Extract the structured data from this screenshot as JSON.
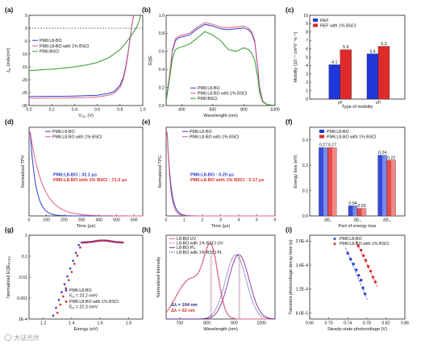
{
  "figure": {
    "watermark": "大话光伏",
    "colors": {
      "blue": "#2b3fd0",
      "red": "#e02a2a",
      "pink": "#e06080",
      "green": "#2e9a2e",
      "purple": "#8a2aa0",
      "navy": "#1c2a8a"
    }
  },
  "chart_data": [
    {
      "panel": "(a)",
      "type": "line",
      "xlabel": "V",
      "xlabel_sub": "OC",
      "xlabel_unit": " (V)",
      "ylabel": "J",
      "ylabel_sub": "sc",
      "ylabel_unit": " (mA/cm²)",
      "xlim": [
        0,
        1.0
      ],
      "ylim": [
        -30,
        5
      ],
      "xticks": [
        "0.0",
        "0.2",
        "0.4",
        "0.6",
        "0.8",
        "1.0"
      ],
      "yticks": [
        "5",
        "0",
        "-5",
        "-10",
        "-15",
        "-20",
        "-25",
        "-30"
      ],
      "legend": "top-left",
      "series": [
        {
          "name": "PM6:L8-BO",
          "color": "#2b3fd0",
          "x": [
            0,
            0.1,
            0.2,
            0.3,
            0.4,
            0.5,
            0.6,
            0.7,
            0.75,
            0.8,
            0.83,
            0.85,
            0.87,
            0.89,
            0.9,
            0.92
          ],
          "y": [
            -26.5,
            -26.5,
            -26.4,
            -26.4,
            -26.3,
            -26.2,
            -26.0,
            -25.3,
            -24.5,
            -22.2,
            -19,
            -15,
            -9.5,
            -3.5,
            0,
            5
          ]
        },
        {
          "name": "PM6:L8-BO with 1% BSCl",
          "color": "#e06080",
          "x": [
            0,
            0.1,
            0.2,
            0.3,
            0.4,
            0.5,
            0.6,
            0.7,
            0.75,
            0.8,
            0.83,
            0.85,
            0.87,
            0.89,
            0.9,
            0.92
          ],
          "y": [
            -27.2,
            -27.2,
            -27.1,
            -27.1,
            -27.0,
            -26.9,
            -26.7,
            -26.0,
            -25.2,
            -23,
            -19.8,
            -15.8,
            -10.2,
            -4,
            0,
            5
          ]
        },
        {
          "name": "PM6:BSCl",
          "color": "#2e9a2e",
          "x": [
            0,
            0.1,
            0.2,
            0.3,
            0.4,
            0.5,
            0.6,
            0.7,
            0.8,
            0.85,
            0.88,
            0.92,
            0.95,
            0.97,
            0.98
          ],
          "y": [
            -16.5,
            -16.2,
            -15.9,
            -15.5,
            -15,
            -14.3,
            -13.3,
            -11.5,
            -8.3,
            -5.8,
            -4,
            -1.5,
            0.8,
            3,
            5
          ]
        }
      ]
    },
    {
      "panel": "(b)",
      "type": "line",
      "xlabel": "Wavelength (nm)",
      "ylabel": "EQE",
      "xlim": [
        300,
        1000
      ],
      "ylim": [
        0,
        1.0
      ],
      "xticks": [
        "400",
        "600",
        "800",
        "1000"
      ],
      "yticks": [
        "0.0",
        "0.2",
        "0.4",
        "0.6",
        "0.8",
        "1.0"
      ],
      "legend": "bottom-center",
      "series": [
        {
          "name": "PM6:L8-BO",
          "color": "#2b3fd0",
          "x": [
            300,
            320,
            340,
            360,
            380,
            400,
            450,
            500,
            550,
            600,
            650,
            700,
            750,
            800,
            830,
            850,
            870,
            890,
            900,
            920,
            950,
            1000
          ],
          "y": [
            0.05,
            0.3,
            0.6,
            0.72,
            0.75,
            0.76,
            0.78,
            0.85,
            0.9,
            0.88,
            0.85,
            0.84,
            0.85,
            0.86,
            0.84,
            0.8,
            0.7,
            0.4,
            0.2,
            0.05,
            0.01,
            0
          ]
        },
        {
          "name": "PM6:L8-BO with 1% BSCl",
          "color": "#e06080",
          "x": [
            300,
            320,
            340,
            360,
            380,
            400,
            450,
            500,
            550,
            600,
            650,
            700,
            750,
            800,
            830,
            850,
            870,
            890,
            900,
            920,
            950,
            1000
          ],
          "y": [
            0.05,
            0.32,
            0.62,
            0.74,
            0.77,
            0.78,
            0.8,
            0.87,
            0.92,
            0.9,
            0.87,
            0.86,
            0.87,
            0.88,
            0.86,
            0.82,
            0.72,
            0.42,
            0.22,
            0.05,
            0.01,
            0
          ]
        },
        {
          "name": "PM6:BSCl",
          "color": "#2e9a2e",
          "x": [
            300,
            320,
            340,
            360,
            380,
            400,
            450,
            500,
            550,
            600,
            650,
            700,
            750,
            800,
            830,
            850,
            870,
            890,
            900,
            920,
            950,
            1000
          ],
          "y": [
            0.05,
            0.28,
            0.52,
            0.62,
            0.64,
            0.65,
            0.68,
            0.75,
            0.82,
            0.78,
            0.72,
            0.62,
            0.6,
            0.64,
            0.62,
            0.58,
            0.5,
            0.3,
            0.15,
            0.04,
            0.01,
            0
          ]
        }
      ]
    },
    {
      "panel": "(c)",
      "type": "bar",
      "xlabel": "Type of mobility",
      "ylabel": "Mobility (10⁻⁴ cm²V⁻¹s⁻¹)",
      "ylim": [
        0,
        10
      ],
      "yticks": [
        "10",
        "9",
        "8",
        "7",
        "6",
        "5",
        "4",
        "3",
        "2",
        "1",
        "0"
      ],
      "categories": [
        "μe",
        "μh"
      ],
      "legend": "top-left",
      "series": [
        {
          "name": "REF",
          "color": "#1f36d8",
          "values": [
            4.1,
            5.4
          ],
          "labels": [
            "4.1",
            "5.4"
          ]
        },
        {
          "name": "REF with 1% BSCl",
          "color": "#e02a2a",
          "values": [
            5.9,
            6.3
          ],
          "labels": [
            "5.9",
            "6.3"
          ]
        }
      ]
    },
    {
      "panel": "(d)",
      "type": "line",
      "xlabel": "Time (μs)",
      "ylabel": "Normalized TPV",
      "xlim": [
        0,
        650
      ],
      "ylim": [
        0,
        1.05
      ],
      "xticks": [
        "0",
        "100",
        "200",
        "300",
        "400",
        "500",
        "600"
      ],
      "legend": "top-right",
      "annotations": [
        {
          "text": "PM6:L8-BO : 32.1 μs",
          "color": "#2b3fd0"
        },
        {
          "text": "PM6:L8-BO with 1% BSCl : 71.2 μs",
          "color": "#e02a2a"
        }
      ],
      "series": [
        {
          "name": "PM6:L8-BO",
          "color": "#2b3fd0",
          "tau": 32.1
        },
        {
          "name": "PM6:L8-BO with 1% BSCl",
          "color": "#e06080",
          "tau": 71.2
        }
      ]
    },
    {
      "panel": "(e)",
      "type": "line",
      "xlabel": "Time (μs)",
      "ylabel": "Normalized TPC",
      "xlim": [
        0,
        6
      ],
      "ylim": [
        0,
        1.05
      ],
      "xticks": [
        "0",
        "1",
        "2",
        "3",
        "4",
        "5",
        "6"
      ],
      "legend": "top-right",
      "annotations": [
        {
          "text": "PM6:L8-BO : 0.20 μs",
          "color": "#2b3fd0"
        },
        {
          "text": "PM6:L8-BO with 1% BSCl : 0.17 μs",
          "color": "#e02a2a"
        }
      ],
      "series": [
        {
          "name": "PM6:L8-BO",
          "color": "#2b3fd0",
          "tau": 0.2
        },
        {
          "name": "PM6:L8-BO with 1% BSCl",
          "color": "#e06080",
          "tau": 0.17
        }
      ]
    },
    {
      "panel": "(f)",
      "type": "bar",
      "xlabel": "Part of energy loss",
      "ylabel": "Energy loss (eV)",
      "ylim": [
        0,
        0.35
      ],
      "yticks": [
        "0.3",
        "0.2",
        "0.1",
        "0.0"
      ],
      "categories": [
        "ΔE₁",
        "ΔE₂",
        "ΔE₃"
      ],
      "legend": "top-right",
      "series": [
        {
          "name": "PM6:L8-BO",
          "color": "#1f36d8",
          "values": [
            0.27,
            0.04,
            0.24
          ],
          "labels": [
            "0.27",
            "0.04",
            "0.24"
          ]
        },
        {
          "name": "PM6:L8-BO with 1% BSCl",
          "color": "#e02a2a",
          "values": [
            0.27,
            0.03,
            0.22
          ],
          "labels": [
            "0.27",
            "0.03",
            "0.22"
          ]
        }
      ]
    },
    {
      "panel": "(g)",
      "type": "scatter",
      "xlabel": "Energy (eV)",
      "ylabel": "Normalized EQE",
      "ylabel_sub": "FTPS",
      "xlim": [
        1.1,
        1.9
      ],
      "ylim_log10": [
        -4,
        0
      ],
      "xticks": [
        "1.2",
        "1.4",
        "1.6",
        "1.8"
      ],
      "yticks": [
        "1",
        "0.1",
        "0.01",
        "0.001",
        "1E-4"
      ],
      "legend": "bottom-right",
      "legend_extra": [
        {
          "label": "E",
          "sub": "U",
          "value": " = 23.2 meV"
        },
        {
          "label": "E",
          "sub": "U",
          "value": " = 22.3 meV"
        }
      ],
      "series": [
        {
          "name": "PM6:L8-BO",
          "color": "#2b3fd0"
        },
        {
          "name": "PM6:L8-BO with 1% BSCl",
          "color": "#e02a2a"
        }
      ]
    },
    {
      "panel": "(h)",
      "type": "line",
      "xlabel": "Wavelength (nm)",
      "ylabel": "Normalized Intensity",
      "xlim": [
        650,
        1050
      ],
      "ylim": [
        0,
        1.3
      ],
      "xticks": [
        "700",
        "800",
        "900",
        "1000"
      ],
      "legend": "top-left",
      "annotations": [
        {
          "text": "Δλ = 104 nm",
          "color": "#1c2a8a"
        },
        {
          "text": "Δλ = 92 nm",
          "color": "#e02a2a"
        }
      ],
      "series": [
        {
          "name": "L8-BO UV",
          "color": "#e06080",
          "dash": "none"
        },
        {
          "name": "L8-BO with 1% BSCl UV",
          "color": "#e06080",
          "dash": "2,1.5"
        },
        {
          "name": "L8-BO PL",
          "color": "#8a2aa0",
          "dash": "none"
        },
        {
          "name": "L8-BO with 1% BSCl PL",
          "color": "#1c2a8a",
          "dash": "1,1"
        }
      ]
    },
    {
      "panel": "(i)",
      "type": "scatter",
      "xlabel": "Steady-state photovoltage (V)",
      "ylabel": "Transient photovoltage decay time (s)",
      "xlim": [
        0.66,
        0.86
      ],
      "xticks": [
        "0.66",
        "0.70",
        "0.74",
        "0.78",
        "0.82",
        "0.86"
      ],
      "yticks": [
        "2.0E-4",
        "1.6E-4",
        "1.2E-4",
        "8.0E-5"
      ],
      "legend": "top-right",
      "series": [
        {
          "name": "PM6:L8-BO",
          "color": "#2b3fd0",
          "x": [
            0.74,
            0.746,
            0.752,
            0.758,
            0.763,
            0.768,
            0.772,
            0.776
          ],
          "y": [
            1.8,
            1.7,
            1.62,
            1.52,
            1.43,
            1.35,
            1.22,
            1.12
          ]
        },
        {
          "name": "PM6:L8-BO with 1% BSCl",
          "color": "#e02a2a",
          "x": [
            0.762,
            0.768,
            0.773,
            0.778,
            0.783,
            0.788,
            0.793,
            0.798
          ],
          "y": [
            1.92,
            1.85,
            1.76,
            1.68,
            1.58,
            1.5,
            1.4,
            1.32
          ]
        }
      ]
    }
  ]
}
